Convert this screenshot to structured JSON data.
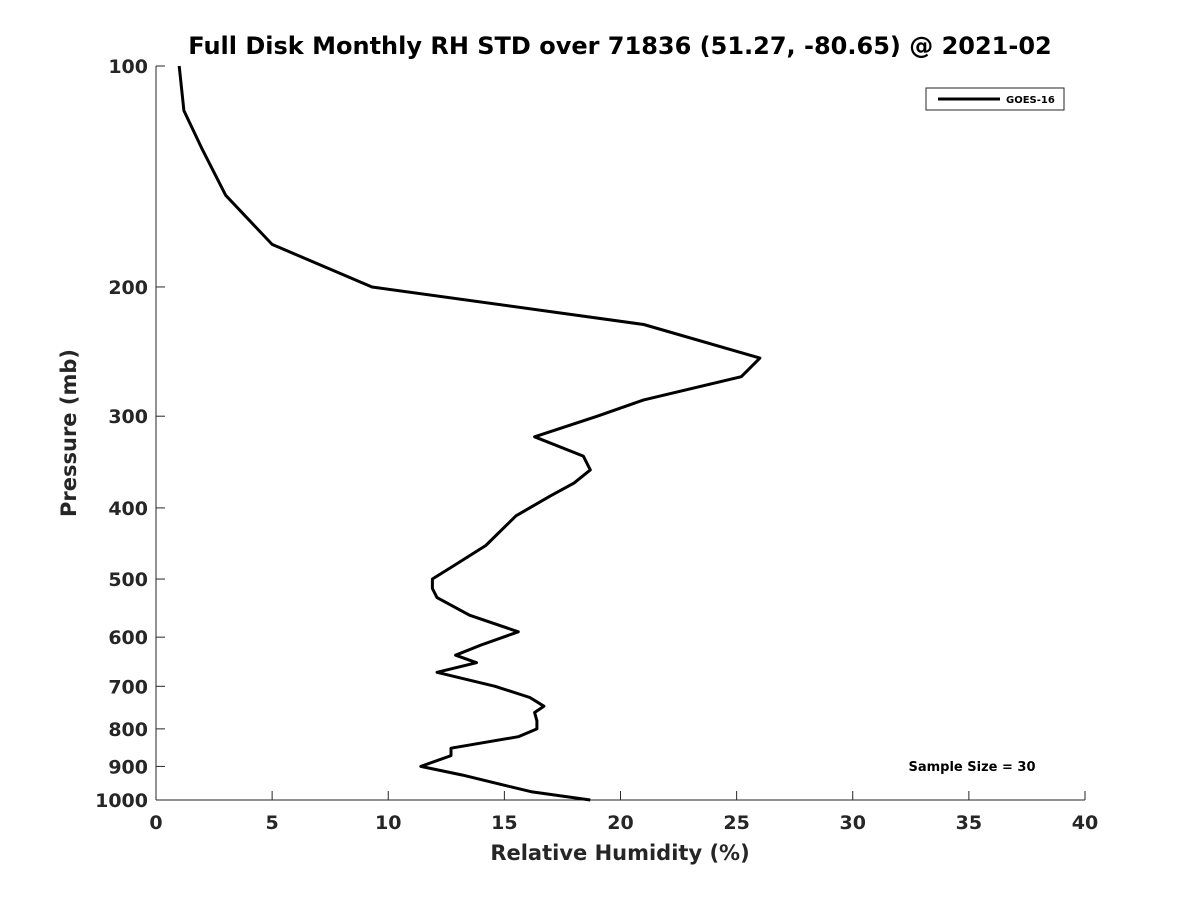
{
  "chart_data": {
    "type": "line",
    "title": "Full Disk Monthly RH STD over 71836 (51.27, -80.65) @ 2021-02",
    "xlabel": "Relative Humidity (%)",
    "ylabel": "Pressure (mb)",
    "xlim": [
      0,
      40
    ],
    "ylim": [
      100,
      1000
    ],
    "yscale": "log",
    "y_reversed": true,
    "grid": false,
    "legend_position": "top-right",
    "x_ticks": [
      "0",
      "5",
      "10",
      "15",
      "20",
      "25",
      "30",
      "35",
      "40"
    ],
    "x_tick_values": [
      0,
      5,
      10,
      15,
      20,
      25,
      30,
      35,
      40
    ],
    "y_ticks": [
      "100",
      "200",
      "300",
      "400",
      "500",
      "600",
      "700",
      "800",
      "900",
      "1000"
    ],
    "y_tick_values": [
      100,
      200,
      300,
      400,
      500,
      600,
      700,
      800,
      900,
      1000
    ],
    "series": [
      {
        "name": "GOES-16",
        "color": "#000000",
        "x": [
          1.0,
          1.2,
          2.0,
          3.0,
          5.0,
          9.3,
          21.0,
          26.0,
          25.2,
          21.0,
          19.0,
          16.3,
          18.4,
          18.7,
          18.0,
          17.0,
          15.5,
          14.2,
          12.8,
          11.9,
          11.9,
          12.1,
          13.5,
          15.6,
          14.0,
          12.9,
          13.8,
          12.1,
          14.6,
          16.1,
          16.7,
          16.3,
          16.4,
          16.4,
          15.6,
          12.7,
          12.7,
          11.4,
          13.2,
          14.7,
          16.2,
          18.7
        ],
        "y": [
          100,
          115,
          130,
          150,
          175,
          200,
          225,
          250,
          265,
          285,
          300,
          320,
          340,
          355,
          370,
          385,
          410,
          450,
          480,
          500,
          515,
          530,
          560,
          590,
          615,
          635,
          650,
          670,
          700,
          725,
          745,
          760,
          780,
          800,
          820,
          850,
          870,
          900,
          925,
          950,
          975,
          1000
        ]
      }
    ],
    "legend": [
      "GOES-16"
    ],
    "annotations": [
      "Sample Size = 30"
    ]
  }
}
